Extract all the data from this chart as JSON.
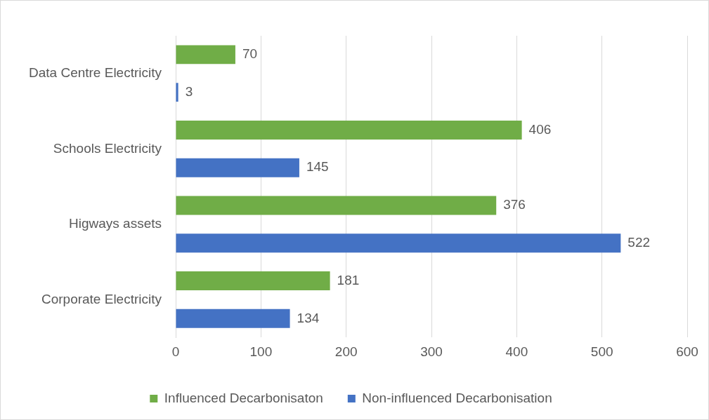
{
  "chart_data": {
    "type": "bar",
    "orientation": "horizontal",
    "categories": [
      "Data Centre Electricity",
      "Schools Electricity",
      "Higways assets",
      "Corporate Electricity"
    ],
    "series": [
      {
        "name": "Influenced Decarbonisaton",
        "color": "#70ad47",
        "values": [
          70,
          406,
          376,
          181
        ]
      },
      {
        "name": "Non-influenced Decarbonisation",
        "color": "#4472c4",
        "values": [
          3,
          145,
          522,
          134
        ]
      }
    ],
    "xlim": [
      0,
      600
    ],
    "xticks": [
      0,
      100,
      200,
      300,
      400,
      500,
      600
    ],
    "grid": "x",
    "legend": "bottom",
    "data_labels": true
  }
}
